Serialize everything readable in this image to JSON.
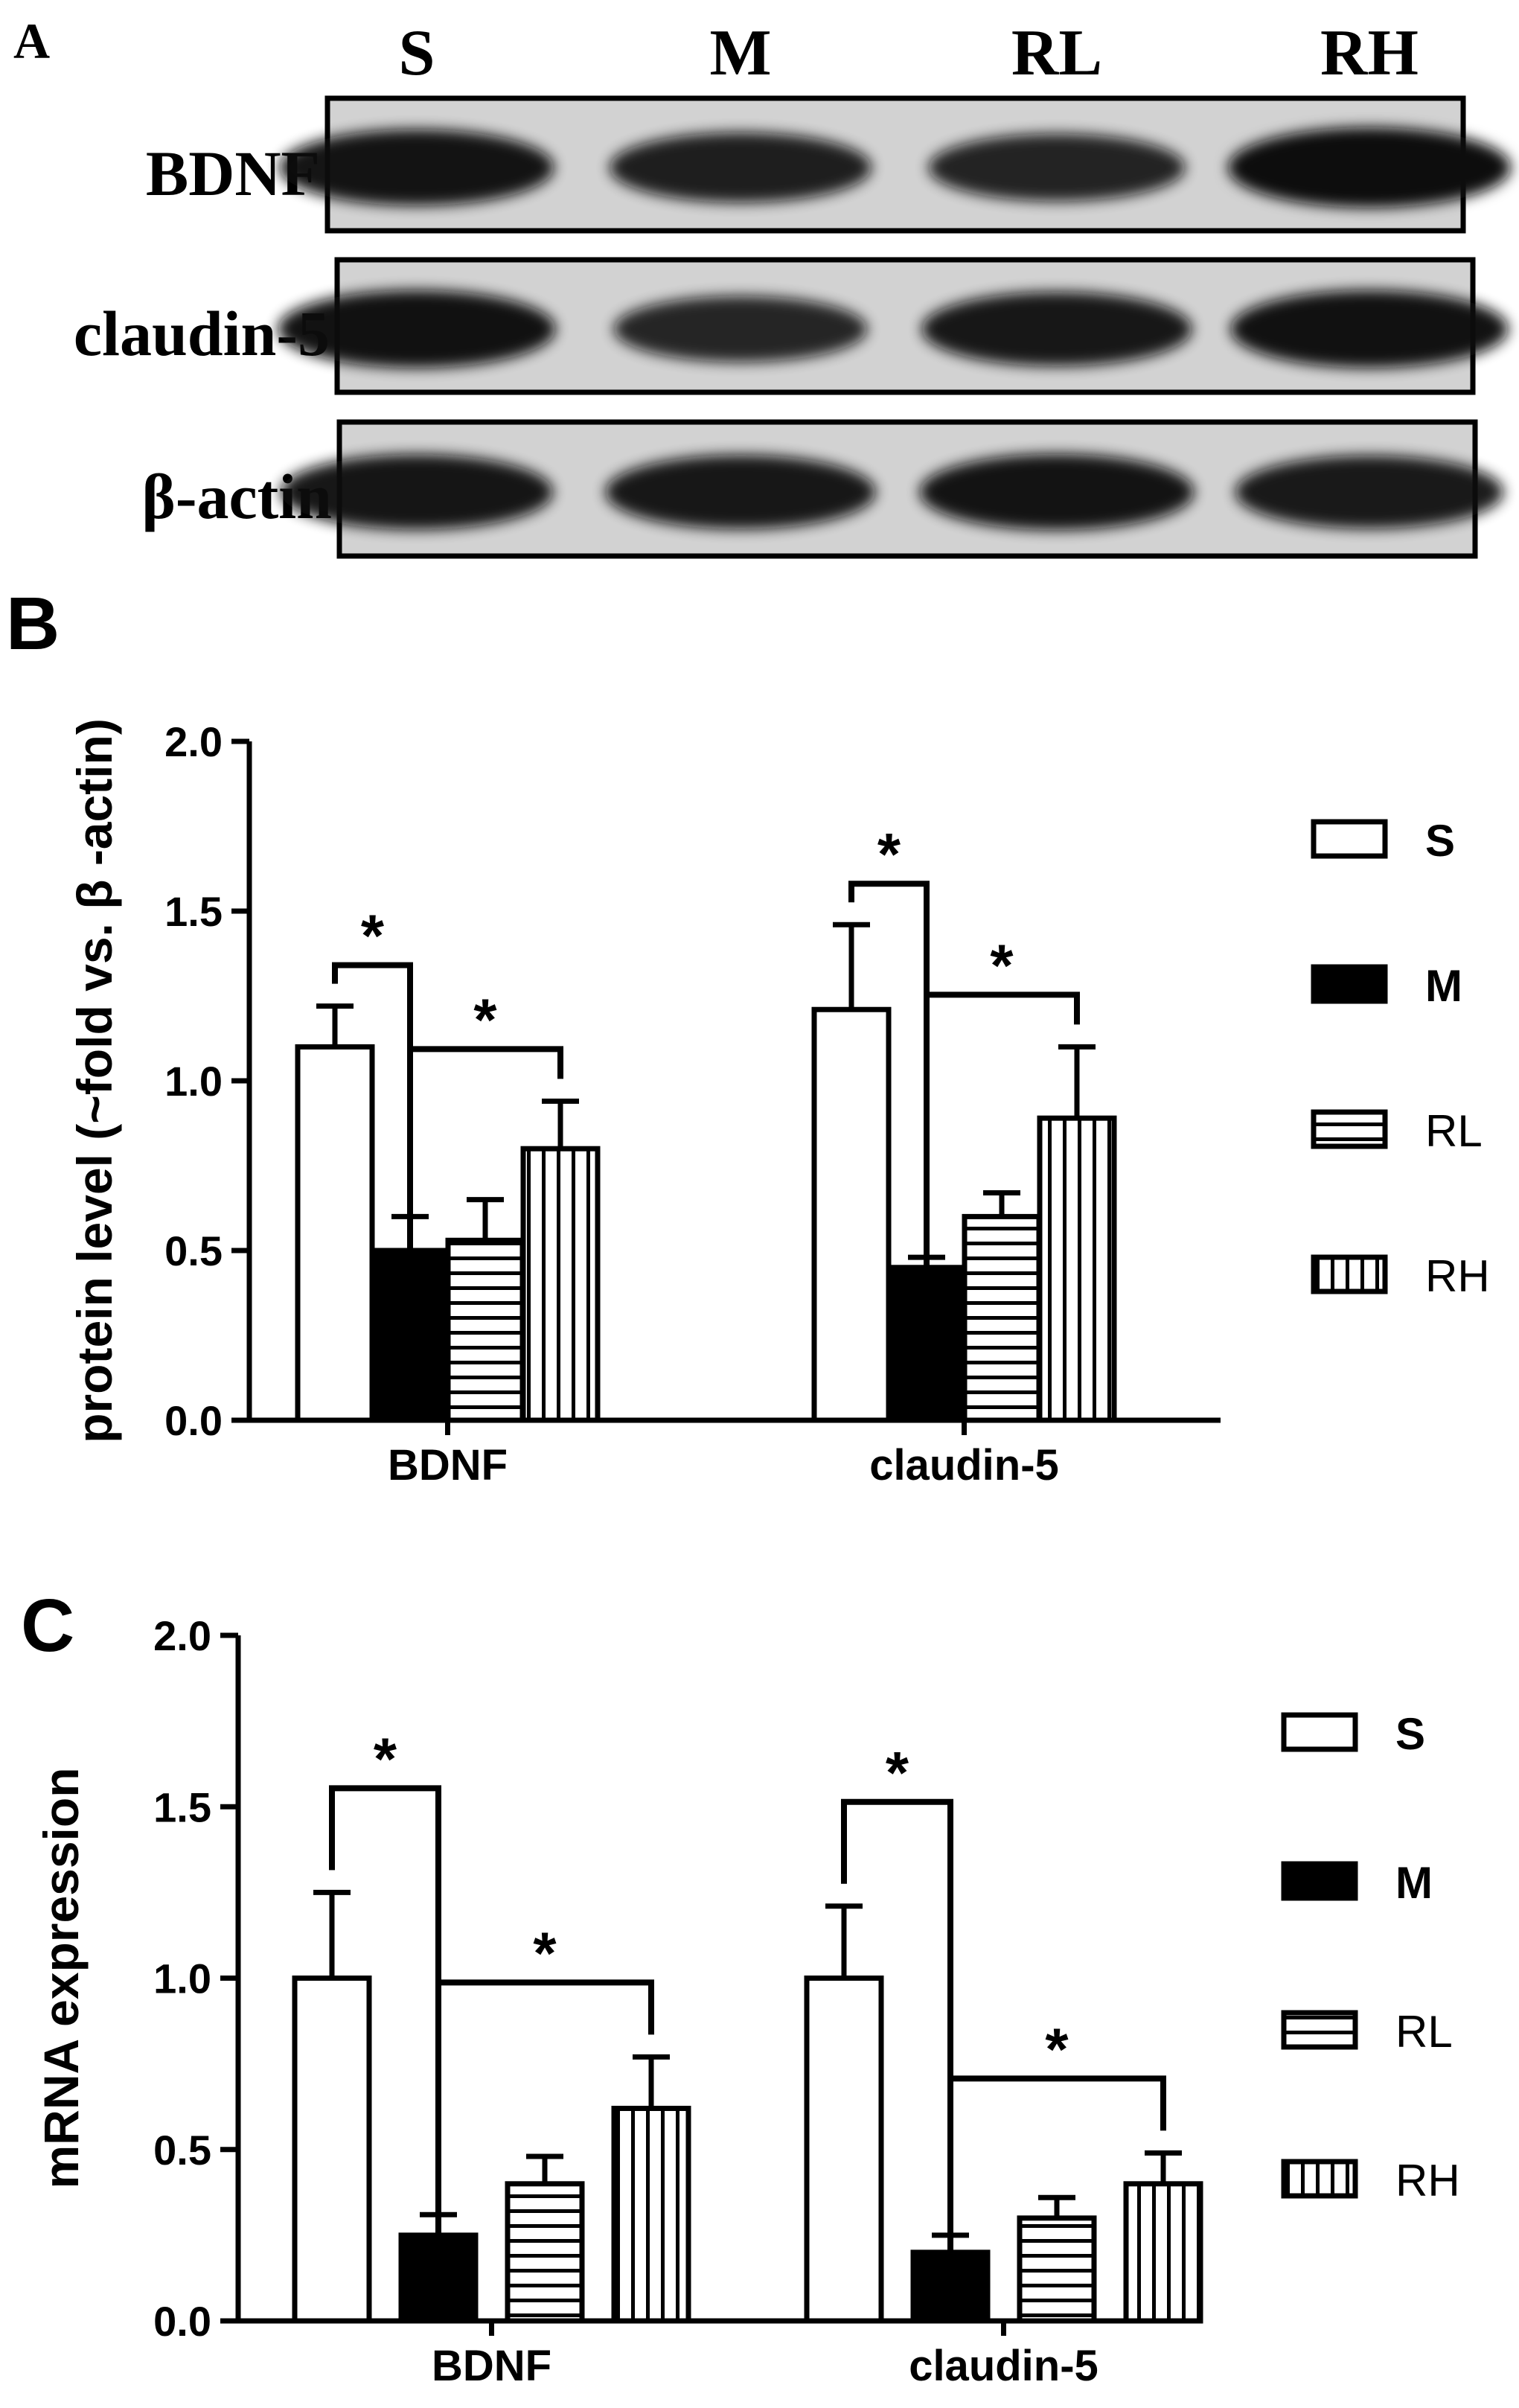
{
  "panel_a": {
    "panel_label": "A",
    "lanes": [
      "S",
      "M",
      "RL",
      "RH"
    ],
    "blots": [
      {
        "label": "BDNF",
        "intensities": [
          0.92,
          0.8,
          0.75,
          1.0
        ]
      },
      {
        "label": "claudin-5",
        "intensities": [
          0.95,
          0.72,
          0.88,
          0.95
        ]
      },
      {
        "label": "β-actin",
        "intensities": [
          0.9,
          0.88,
          0.92,
          0.86
        ]
      }
    ]
  },
  "chart_data": [
    {
      "panel_label": "B",
      "type": "bar",
      "categories": [
        "BDNF",
        "claudin-5"
      ],
      "series": [
        {
          "name": "S",
          "values": [
            1.1,
            1.21
          ],
          "errors": [
            0.12,
            0.25
          ]
        },
        {
          "name": "M",
          "values": [
            0.5,
            0.45
          ],
          "errors": [
            0.1,
            0.03
          ]
        },
        {
          "name": "RL",
          "values": [
            0.53,
            0.6
          ],
          "errors": [
            0.12,
            0.07
          ]
        },
        {
          "name": "RH",
          "values": [
            0.8,
            0.89
          ],
          "errors": [
            0.14,
            0.21
          ]
        }
      ],
      "ylabel": "protein level (~fold vs. β -actin)",
      "ylim": [
        0,
        2
      ],
      "yticks": [
        "0.0",
        "0.5",
        "1.0",
        "1.5",
        "2.0"
      ],
      "significance": [
        {
          "category": "BDNF",
          "from": "S",
          "to": "M",
          "label": "*"
        },
        {
          "category": "BDNF",
          "from": "M",
          "to": "RH",
          "label": "*"
        },
        {
          "category": "claudin-5",
          "from": "S",
          "to": "M",
          "label": "*"
        },
        {
          "category": "claudin-5",
          "from": "M",
          "to": "RH",
          "label": "*"
        }
      ],
      "legend": "right"
    },
    {
      "panel_label": "C",
      "type": "bar",
      "categories": [
        "BDNF",
        "claudin-5"
      ],
      "series": [
        {
          "name": "S",
          "values": [
            1.0,
            1.0
          ],
          "errors": [
            0.25,
            0.21
          ]
        },
        {
          "name": "M",
          "values": [
            0.25,
            0.2
          ],
          "errors": [
            0.06,
            0.05
          ]
        },
        {
          "name": "RL",
          "values": [
            0.4,
            0.3
          ],
          "errors": [
            0.08,
            0.06
          ]
        },
        {
          "name": "RH",
          "values": [
            0.62,
            0.4
          ],
          "errors": [
            0.15,
            0.09
          ]
        }
      ],
      "ylabel": "mRNA expression",
      "ylim": [
        0,
        2
      ],
      "yticks": [
        "0.0",
        "0.5",
        "1.0",
        "1.5",
        "2.0"
      ],
      "significance": [
        {
          "category": "BDNF",
          "from": "S",
          "to": "M",
          "label": "*"
        },
        {
          "category": "BDNF",
          "from": "M",
          "to": "RH",
          "label": "*"
        },
        {
          "category": "claudin-5",
          "from": "S",
          "to": "M",
          "label": "*"
        },
        {
          "category": "claudin-5",
          "from": "M",
          "to": "RH",
          "label": "*"
        }
      ],
      "legend": "right"
    }
  ],
  "colors": {
    "ink": "#000000",
    "paper": "#ffffff",
    "blot_bg": "#d2d2d2"
  }
}
